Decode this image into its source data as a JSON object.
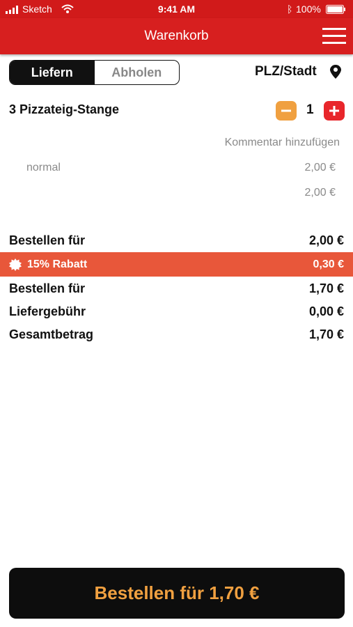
{
  "status_bar": {
    "carrier": "Sketch",
    "time": "9:41 AM",
    "battery": "100%"
  },
  "header": {
    "title": "Warenkorb"
  },
  "delivery_toggle": {
    "options": [
      "Liefern",
      "Abholen"
    ]
  },
  "location": {
    "label": "PLZ/Stadt"
  },
  "cart_items": [
    {
      "name": "3 Pizzateig-Stange",
      "quantity": "1",
      "comment_link": "Kommentar hinzufügen",
      "variant": "normal",
      "variant_price": "2,00 €",
      "item_total": "2,00 €"
    }
  ],
  "subtotal": {
    "label": "Bestellen für",
    "value": "2,00 €"
  },
  "discount": {
    "label": "15% Rabatt",
    "value": "0,30 €"
  },
  "totals": [
    {
      "label": "Bestellen für",
      "value": "1,70 €"
    },
    {
      "label": "Liefergebühr",
      "value": "0,00 €"
    },
    {
      "label": "Gesamtbetrag",
      "value": "1,70 €"
    }
  ],
  "order_button": {
    "label": "Bestellen für 1,70 €"
  }
}
